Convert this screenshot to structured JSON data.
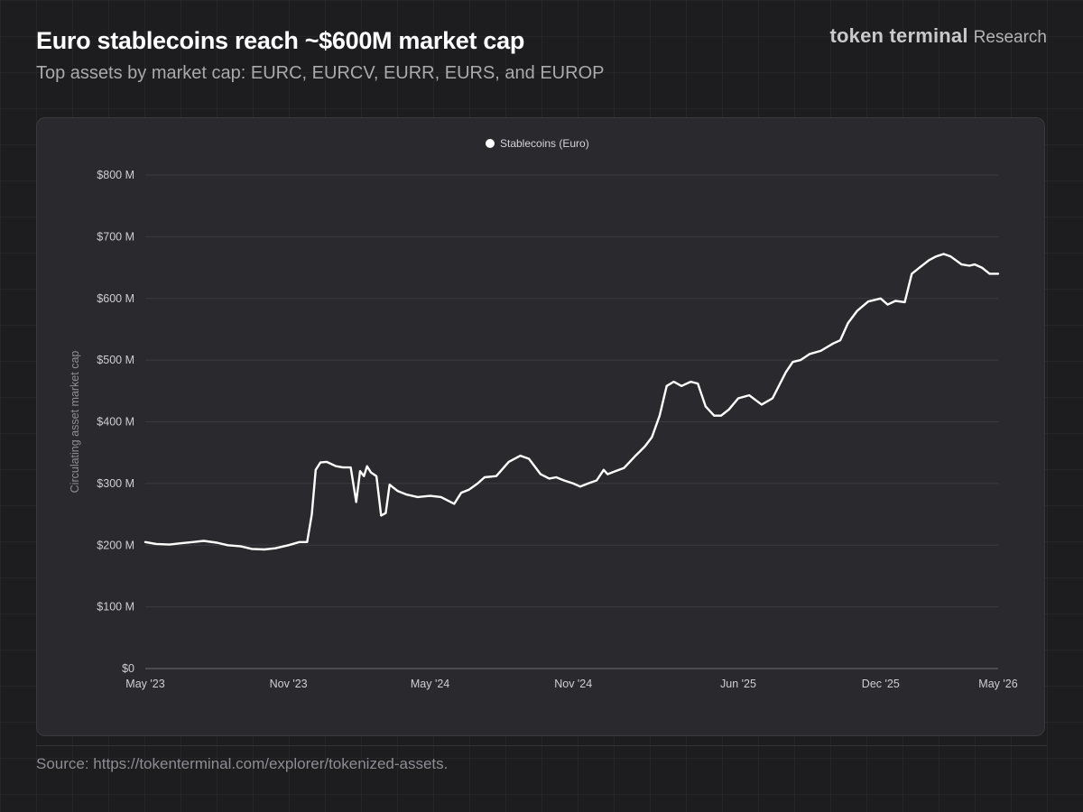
{
  "header": {
    "title": "Euro stablecoins reach ~$600M market cap",
    "subtitle": "Top assets by market cap: EURC, EURCV, EURR, EURS, and EUROP",
    "brand_name": "token terminal",
    "brand_suffix": "Research"
  },
  "footer": {
    "source": "Source: https://tokenterminal.com/explorer/tokenized-assets."
  },
  "colors": {
    "background": "#1d1d20",
    "panel": "#2a2a2e",
    "line": "#ffffff",
    "gridline": "#3a3a3f"
  },
  "chart_data": {
    "type": "line",
    "title": "",
    "xlabel": "",
    "ylabel": "Circulating asset market cap",
    "ylim": [
      0,
      800
    ],
    "y_unit": "M USD",
    "yticks": [
      0,
      100,
      200,
      300,
      400,
      500,
      600,
      700,
      800
    ],
    "ytick_labels": [
      "$0",
      "$100 M",
      "$200 M",
      "$300 M",
      "$400 M",
      "$500 M",
      "$600 M",
      "$700 M",
      "$800 M"
    ],
    "xlim": [
      "2023-05-01",
      "2026-05-01"
    ],
    "xticks": [
      "2023-05-01",
      "2023-11-01",
      "2024-05-01",
      "2024-11-01",
      "2025-06-01",
      "2025-12-01",
      "2026-05-01"
    ],
    "xtick_labels": [
      "May '23",
      "Nov '23",
      "May '24",
      "Nov '24",
      "Jun '25",
      "Dec '25",
      "May '26"
    ],
    "grid": true,
    "legend_position": "top-center",
    "series": [
      {
        "name": "Stablecoins (Euro)",
        "color": "#ffffff",
        "points": [
          [
            "2023-05-01",
            205
          ],
          [
            "2023-05-15",
            202
          ],
          [
            "2023-06-01",
            201
          ],
          [
            "2023-06-15",
            203
          ],
          [
            "2023-07-01",
            205
          ],
          [
            "2023-07-15",
            207
          ],
          [
            "2023-08-01",
            204
          ],
          [
            "2023-08-15",
            200
          ],
          [
            "2023-09-01",
            198
          ],
          [
            "2023-09-15",
            194
          ],
          [
            "2023-10-01",
            193
          ],
          [
            "2023-10-15",
            195
          ],
          [
            "2023-11-01",
            200
          ],
          [
            "2023-11-15",
            205
          ],
          [
            "2023-11-25",
            205
          ],
          [
            "2023-12-01",
            250
          ],
          [
            "2023-12-06",
            322
          ],
          [
            "2023-12-12",
            334
          ],
          [
            "2023-12-20",
            335
          ],
          [
            "2024-01-01",
            328
          ],
          [
            "2024-01-10",
            326
          ],
          [
            "2024-01-20",
            326
          ],
          [
            "2024-01-27",
            270
          ],
          [
            "2024-02-01",
            320
          ],
          [
            "2024-02-06",
            312
          ],
          [
            "2024-02-10",
            328
          ],
          [
            "2024-02-15",
            318
          ],
          [
            "2024-02-22",
            312
          ],
          [
            "2024-02-28",
            248
          ],
          [
            "2024-03-05",
            252
          ],
          [
            "2024-03-10",
            298
          ],
          [
            "2024-03-20",
            288
          ],
          [
            "2024-04-01",
            282
          ],
          [
            "2024-04-15",
            278
          ],
          [
            "2024-05-01",
            280
          ],
          [
            "2024-05-15",
            278
          ],
          [
            "2024-06-01",
            267
          ],
          [
            "2024-06-10",
            285
          ],
          [
            "2024-06-20",
            290
          ],
          [
            "2024-07-01",
            300
          ],
          [
            "2024-07-10",
            310
          ],
          [
            "2024-07-25",
            312
          ],
          [
            "2024-08-10",
            335
          ],
          [
            "2024-08-25",
            345
          ],
          [
            "2024-09-05",
            340
          ],
          [
            "2024-09-20",
            315
          ],
          [
            "2024-10-01",
            308
          ],
          [
            "2024-10-10",
            310
          ],
          [
            "2024-10-20",
            305
          ],
          [
            "2024-11-01",
            300
          ],
          [
            "2024-11-10",
            295
          ],
          [
            "2024-11-20",
            300
          ],
          [
            "2024-12-01",
            305
          ],
          [
            "2024-12-10",
            322
          ],
          [
            "2024-12-15",
            315
          ],
          [
            "2024-12-25",
            320
          ],
          [
            "2025-01-05",
            325
          ],
          [
            "2025-01-20",
            345
          ],
          [
            "2025-02-01",
            360
          ],
          [
            "2025-02-10",
            375
          ],
          [
            "2025-02-20",
            410
          ],
          [
            "2025-03-01",
            458
          ],
          [
            "2025-03-10",
            465
          ],
          [
            "2025-03-20",
            458
          ],
          [
            "2025-04-01",
            465
          ],
          [
            "2025-04-10",
            462
          ],
          [
            "2025-04-20",
            425
          ],
          [
            "2025-05-01",
            410
          ],
          [
            "2025-05-10",
            410
          ],
          [
            "2025-05-20",
            420
          ],
          [
            "2025-06-01",
            438
          ],
          [
            "2025-06-15",
            443
          ],
          [
            "2025-07-01",
            428
          ],
          [
            "2025-07-15",
            438
          ],
          [
            "2025-08-01",
            480
          ],
          [
            "2025-08-10",
            497
          ],
          [
            "2025-08-20",
            500
          ],
          [
            "2025-09-01",
            510
          ],
          [
            "2025-09-15",
            515
          ],
          [
            "2025-10-01",
            527
          ],
          [
            "2025-10-10",
            532
          ],
          [
            "2025-10-20",
            560
          ],
          [
            "2025-11-01",
            580
          ],
          [
            "2025-11-15",
            595
          ],
          [
            "2025-12-01",
            600
          ],
          [
            "2025-12-10",
            590
          ],
          [
            "2025-12-20",
            596
          ],
          [
            "2026-01-01",
            594
          ],
          [
            "2026-01-10",
            640
          ],
          [
            "2026-01-20",
            650
          ],
          [
            "2026-02-01",
            662
          ],
          [
            "2026-02-10",
            668
          ],
          [
            "2026-02-20",
            672
          ],
          [
            "2026-03-01",
            668
          ],
          [
            "2026-03-15",
            655
          ],
          [
            "2026-03-25",
            653
          ],
          [
            "2026-04-01",
            655
          ],
          [
            "2026-04-10",
            650
          ],
          [
            "2026-04-20",
            640
          ],
          [
            "2026-05-01",
            640
          ]
        ]
      }
    ]
  }
}
